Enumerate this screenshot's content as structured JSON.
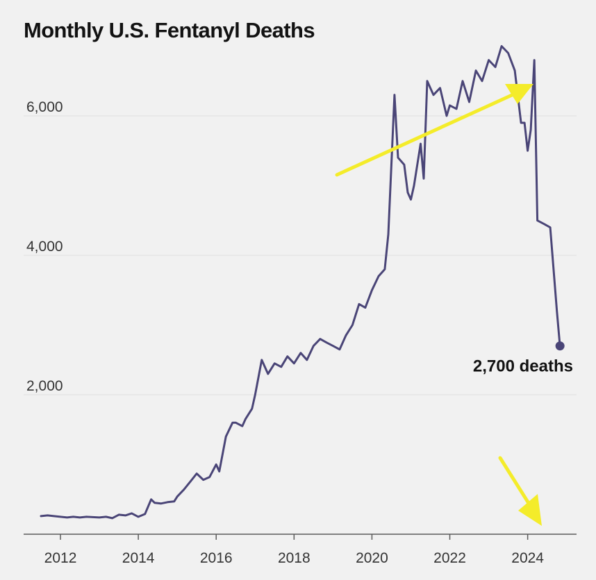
{
  "chart_data": {
    "type": "line",
    "title": "Monthly U.S. Fentanyl Deaths",
    "xlabel": "",
    "ylabel": "",
    "xlim": [
      2011.5,
      2025.1
    ],
    "ylim": [
      0,
      7400
    ],
    "x_ticks": [
      "2012",
      "2014",
      "2016",
      "2018",
      "2020",
      "2022",
      "2024"
    ],
    "y_ticks": [
      "2,000",
      "4,000",
      "6,000"
    ],
    "grid": true,
    "line_color": "#4a4577",
    "annotation_color": "#f4ec2a",
    "end_label": "2,700 deaths",
    "end_value": 2700,
    "end_year": 2024.83,
    "series": [
      {
        "name": "Monthly deaths",
        "x": [
          2011.5,
          2011.67,
          2011.83,
          2012.0,
          2012.17,
          2012.33,
          2012.5,
          2012.67,
          2012.83,
          2013.0,
          2013.17,
          2013.33,
          2013.5,
          2013.67,
          2013.83,
          2014.0,
          2014.17,
          2014.33,
          2014.42,
          2014.58,
          2014.75,
          2014.92,
          2015.0,
          2015.17,
          2015.33,
          2015.5,
          2015.67,
          2015.83,
          2016.0,
          2016.08,
          2016.25,
          2016.42,
          2016.5,
          2016.67,
          2016.75,
          2016.92,
          2017.0,
          2017.17,
          2017.33,
          2017.5,
          2017.67,
          2017.83,
          2018.0,
          2018.17,
          2018.33,
          2018.5,
          2018.67,
          2018.83,
          2019.0,
          2019.17,
          2019.33,
          2019.5,
          2019.67,
          2019.83,
          2020.0,
          2020.17,
          2020.33,
          2020.42,
          2020.58,
          2020.67,
          2020.83,
          2020.92,
          2021.0,
          2021.08,
          2021.25,
          2021.33,
          2021.42,
          2021.58,
          2021.75,
          2021.92,
          2022.0,
          2022.17,
          2022.33,
          2022.5,
          2022.67,
          2022.83,
          2023.0,
          2023.17,
          2023.33,
          2023.5,
          2023.67,
          2023.83,
          2023.92,
          2024.0,
          2024.08,
          2024.17,
          2024.25,
          2024.42,
          2024.58,
          2024.75,
          2024.83
        ],
        "values": [
          260,
          270,
          260,
          250,
          240,
          250,
          240,
          250,
          245,
          240,
          250,
          230,
          280,
          270,
          300,
          250,
          290,
          500,
          450,
          440,
          460,
          470,
          540,
          640,
          750,
          870,
          780,
          820,
          1000,
          900,
          1400,
          1600,
          1600,
          1550,
          1650,
          1800,
          2000,
          2500,
          2300,
          2450,
          2400,
          2550,
          2450,
          2600,
          2500,
          2700,
          2800,
          2750,
          2700,
          2650,
          2850,
          3000,
          3300,
          3250,
          3500,
          3700,
          3800,
          4300,
          6300,
          5400,
          5300,
          4900,
          4800,
          5000,
          5600,
          5100,
          6500,
          6300,
          6400,
          6000,
          6150,
          6100,
          6500,
          6200,
          6650,
          6500,
          6800,
          6700,
          7000,
          6900,
          6650,
          5900,
          5900,
          5500,
          5800,
          6800,
          4500,
          4450,
          4400,
          3200,
          2700
        ]
      }
    ]
  }
}
